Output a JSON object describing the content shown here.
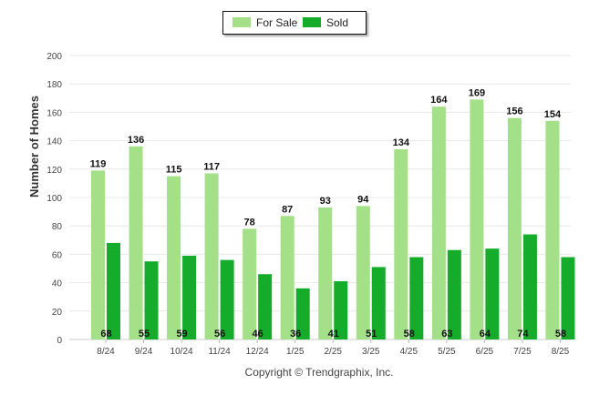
{
  "legend": {
    "for_sale": "For Sale",
    "sold": "Sold"
  },
  "footer": "Copyright © Trendgraphix, Inc.",
  "colors": {
    "for_sale": "#a3e088",
    "sold": "#14ac2a",
    "grid": "#e8e8e8",
    "axis_text": "#444444"
  },
  "chart_data": {
    "type": "bar",
    "ylabel": "Number of Homes",
    "xlabel": "",
    "ylim": [
      0,
      200
    ],
    "yticks": [
      0,
      20,
      40,
      60,
      80,
      100,
      120,
      140,
      160,
      180,
      200
    ],
    "grid": true,
    "legend_position": "top-center",
    "categories": [
      "8/24",
      "9/24",
      "10/24",
      "11/24",
      "12/24",
      "1/25",
      "2/25",
      "3/25",
      "4/25",
      "5/25",
      "6/25",
      "7/25",
      "8/25"
    ],
    "series": [
      {
        "name": "For Sale",
        "values": [
          119,
          136,
          115,
          117,
          78,
          87,
          93,
          94,
          134,
          164,
          169,
          156,
          154
        ]
      },
      {
        "name": "Sold",
        "values": [
          68,
          55,
          59,
          56,
          46,
          36,
          41,
          51,
          58,
          63,
          64,
          74,
          58
        ]
      }
    ]
  }
}
